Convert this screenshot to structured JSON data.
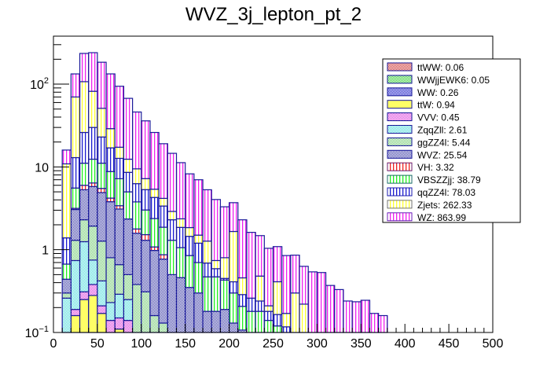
{
  "chart_data": {
    "type": "bar",
    "subtype": "stacked-histogram",
    "title": "WVZ_3j_lepton_pt_2",
    "xlabel": "",
    "ylabel": "",
    "xlim": [
      0,
      500
    ],
    "ylim": [
      0.1,
      380
    ],
    "yscale": "log",
    "bin_width": 10,
    "x_ticks": [
      "0",
      "50",
      "100",
      "150",
      "200",
      "250",
      "300",
      "350",
      "400",
      "450",
      "500"
    ],
    "x_tick_values": [
      0,
      50,
      100,
      150,
      200,
      250,
      300,
      350,
      400,
      450,
      500
    ],
    "y_ticks": [
      {
        "value": 0.1,
        "base": "10",
        "exp": "−1"
      },
      {
        "value": 1,
        "base": "1",
        "exp": ""
      },
      {
        "value": 10,
        "base": "10",
        "exp": ""
      },
      {
        "value": 100,
        "base": "10",
        "exp": "2"
      }
    ],
    "grid": false,
    "legend_position": "top-right",
    "stack_order_bottom_to_top": [
      "ttWW",
      "WWjjEWK6",
      "WW",
      "ttW",
      "VVV",
      "ZqqZll",
      "ggZZ4l",
      "WVZ",
      "VH",
      "VBSZZjj",
      "qqZZ4l",
      "Zjets",
      "WZ"
    ],
    "series": [
      {
        "name": "ttWW",
        "legend": "ttWW: 0.06",
        "color": "#cc3333",
        "style": "crosshatch",
        "values": [
          0,
          0,
          0,
          0,
          0,
          0,
          0,
          0,
          0,
          0,
          0,
          0,
          0,
          0,
          0,
          0,
          0,
          0,
          0,
          0,
          0,
          0,
          0,
          0,
          0,
          0,
          0,
          0,
          0,
          0,
          0,
          0,
          0,
          0,
          0,
          0,
          0,
          0,
          0,
          0,
          0,
          0,
          0,
          0,
          0,
          0,
          0,
          0,
          0,
          0
        ]
      },
      {
        "name": "WWjjEWK6",
        "legend": "WWjjEWK6: 0.05",
        "color": "#33cc33",
        "style": "crosshatch",
        "values": [
          0,
          0,
          0,
          0,
          0,
          0,
          0,
          0,
          0,
          0,
          0,
          0,
          0,
          0,
          0,
          0,
          0,
          0,
          0,
          0,
          0,
          0,
          0,
          0,
          0,
          0,
          0,
          0,
          0,
          0,
          0,
          0,
          0,
          0,
          0,
          0,
          0,
          0,
          0,
          0,
          0,
          0,
          0,
          0,
          0,
          0,
          0,
          0,
          0,
          0
        ]
      },
      {
        "name": "WW",
        "legend": "WW: 0.26",
        "color": "#1a1ac8",
        "style": "crosshatch",
        "values": [
          0,
          0,
          0,
          0,
          0,
          0,
          0,
          0,
          0,
          0,
          0,
          0,
          0,
          0,
          0,
          0,
          0,
          0,
          0,
          0,
          0,
          0,
          0,
          0,
          0,
          0,
          0,
          0,
          0,
          0,
          0,
          0,
          0,
          0,
          0,
          0,
          0,
          0,
          0,
          0,
          0,
          0,
          0,
          0,
          0.1,
          0,
          0,
          0,
          0,
          0
        ]
      },
      {
        "name": "ttW",
        "legend": "ttW: 0.94",
        "color": "#ffff66",
        "style": "fill",
        "values": [
          0,
          0,
          0.16,
          0.25,
          0.28,
          0.17,
          0,
          0.11,
          0,
          0,
          0,
          0,
          0,
          0,
          0,
          0,
          0,
          0,
          0,
          0,
          0,
          0,
          0,
          0,
          0,
          0,
          0,
          0,
          0,
          0,
          0,
          0,
          0,
          0,
          0,
          0,
          0,
          0,
          0,
          0,
          0,
          0,
          0,
          0,
          0,
          0,
          0,
          0,
          0,
          0
        ]
      },
      {
        "name": "VVV",
        "legend": "VVV: 0.45",
        "color": "#dd44dd",
        "style": "crosshatch",
        "values": [
          0,
          0,
          0.03,
          0.06,
          0.1,
          0.04,
          0.14,
          0.04,
          0.14,
          0,
          0,
          0,
          0,
          0,
          0,
          0,
          0,
          0,
          0,
          0,
          0,
          0,
          0,
          0,
          0,
          0,
          0,
          0,
          0,
          0,
          0,
          0,
          0,
          0,
          0,
          0,
          0,
          0,
          0,
          0,
          0,
          0,
          0,
          0,
          0,
          0,
          0,
          0,
          0,
          0
        ]
      },
      {
        "name": "ZqqZll",
        "legend": "ZqqZll: 2.61",
        "color": "#55dddd",
        "style": "crosshatch",
        "values": [
          0,
          0.26,
          0.55,
          0.94,
          0.37,
          0.21,
          0.09,
          0.14,
          0.11,
          0.1,
          0,
          0,
          0,
          0,
          0,
          0,
          0,
          0,
          0,
          0,
          0,
          0,
          0,
          0,
          0,
          0,
          0,
          0,
          0,
          0,
          0,
          0,
          0,
          0,
          0,
          0,
          0,
          0,
          0,
          0,
          0,
          0,
          0,
          0,
          0,
          0,
          0,
          0,
          0,
          0
        ]
      },
      {
        "name": "ggZZ4l",
        "legend": "ggZZ4l: 5.44",
        "color": "#77cc77",
        "style": "crosshatch",
        "values": [
          0,
          0.04,
          0.56,
          1.05,
          1.18,
          0.85,
          0.57,
          0.37,
          0.25,
          0.28,
          0.31,
          0.16,
          0.13,
          0,
          0,
          0,
          0,
          0,
          0,
          0,
          0,
          0,
          0,
          0,
          0,
          0,
          0,
          0,
          0,
          0,
          0,
          0,
          0,
          0,
          0,
          0,
          0,
          0,
          0,
          0,
          0,
          0,
          0,
          0,
          0,
          0,
          0,
          0,
          0,
          0
        ]
      },
      {
        "name": "WVZ",
        "legend": "WVZ: 25.54",
        "color": "#4444aa",
        "style": "crosshatch",
        "values": [
          0,
          0.14,
          1.76,
          3.0,
          3.87,
          3.63,
          3.0,
          2.44,
          1.85,
          1.2,
          0.99,
          0.82,
          0.64,
          0.5,
          0.46,
          0.35,
          0.3,
          0.18,
          0.18,
          0.19,
          0.13,
          0.107,
          0,
          0.02,
          0,
          0,
          0,
          0,
          0,
          0,
          0,
          0,
          0,
          0,
          0,
          0,
          0,
          0,
          0,
          0,
          0,
          0,
          0,
          0,
          0,
          0,
          0,
          0,
          0,
          0
        ]
      },
      {
        "name": "VH",
        "legend": "VH: 3.32",
        "color": "#ee2222",
        "style": "vlines",
        "values": [
          0,
          0,
          0.1,
          0.7,
          0.6,
          0.6,
          0.4,
          0.3,
          0,
          0.2,
          0.22,
          0.1,
          0.1,
          0,
          0,
          0,
          0,
          0,
          0,
          0,
          0,
          0,
          0,
          0,
          0,
          0,
          0,
          0,
          0,
          0,
          0,
          0,
          0,
          0,
          0,
          0,
          0,
          0,
          0,
          0,
          0,
          0,
          0,
          0,
          0,
          0,
          0,
          0,
          0,
          0
        ]
      },
      {
        "name": "VBSZZjj",
        "legend": "VBSZZjj: 38.79",
        "color": "#22ee22",
        "style": "vlines",
        "values": [
          0,
          0.23,
          2.4,
          5.1,
          6.0,
          5.6,
          4.6,
          3.8,
          2.65,
          2.0,
          1.5,
          1.3,
          1.0,
          0.8,
          0.6,
          0.5,
          0.4,
          0.29,
          0.29,
          0.24,
          0.17,
          0.1,
          0.18,
          0.16,
          0.14,
          0.12,
          0,
          0,
          0,
          0,
          0,
          0,
          0,
          0,
          0,
          0,
          0,
          0,
          0,
          0,
          0,
          0,
          0,
          0,
          0,
          0,
          0,
          0,
          0,
          0
        ]
      },
      {
        "name": "qqZZ4l",
        "legend": "qqZZ4l: 78.03",
        "color": "#1a1ad0",
        "style": "vlines",
        "values": [
          0,
          0.72,
          7.4,
          15,
          17.6,
          11.9,
          8.2,
          5.5,
          3.6,
          2.5,
          2.3,
          1.9,
          1.5,
          1.0,
          0.8,
          0.6,
          0.5,
          0.22,
          0.12,
          0.02,
          0.11,
          0.08,
          0.08,
          0.06,
          0.04,
          0.045,
          0.117,
          0.1,
          0,
          0,
          0,
          0,
          0,
          0,
          0,
          0,
          0,
          0,
          0,
          0,
          0,
          0,
          0,
          0,
          0,
          0,
          0,
          0,
          0,
          0
        ]
      },
      {
        "name": "Zjets",
        "legend": "Zjets: 262.33",
        "color": "#ffff33",
        "style": "vlines",
        "values": [
          0,
          9.5,
          57,
          81,
          52,
          28,
          12,
          4.6,
          3.8,
          3.2,
          1.9,
          1.1,
          0.8,
          0.6,
          0.5,
          0.4,
          0.3,
          0.58,
          0.15,
          0.35,
          1.25,
          0.17,
          0,
          0.24,
          0.03,
          0.245,
          0.053,
          0.2,
          0.22,
          0,
          0,
          0,
          0,
          0,
          0,
          0,
          0,
          0,
          0,
          0,
          0,
          0,
          0,
          0,
          0,
          0,
          0,
          0,
          0,
          0
        ]
      },
      {
        "name": "WZ",
        "legend": "WZ: 863.99",
        "color": "#ee22ee",
        "style": "vlines",
        "values": [
          0,
          5.1,
          63,
          128,
          158,
          133,
          104,
          77,
          55,
          36.6,
          28.8,
          20.7,
          14.9,
          11.7,
          8.9,
          6.4,
          5.5,
          4.03,
          3.3,
          2.5,
          2.04,
          1.84,
          1.36,
          1.0,
          0.83,
          0.68,
          0.68,
          0.56,
          0.41,
          0.54,
          0.53,
          0.37,
          0.33,
          0.24,
          0.235,
          0.245,
          0.17,
          0.16,
          0,
          0,
          0,
          0,
          0,
          0,
          0,
          0,
          0,
          0,
          0,
          0
        ]
      }
    ],
    "legend_order": [
      "ttWW",
      "WWjjEWK6",
      "WW",
      "ttW",
      "VVV",
      "ZqqZll",
      "ggZZ4l",
      "WVZ",
      "VH",
      "VBSZZjj",
      "qqZZ4l",
      "Zjets",
      "WZ"
    ]
  }
}
